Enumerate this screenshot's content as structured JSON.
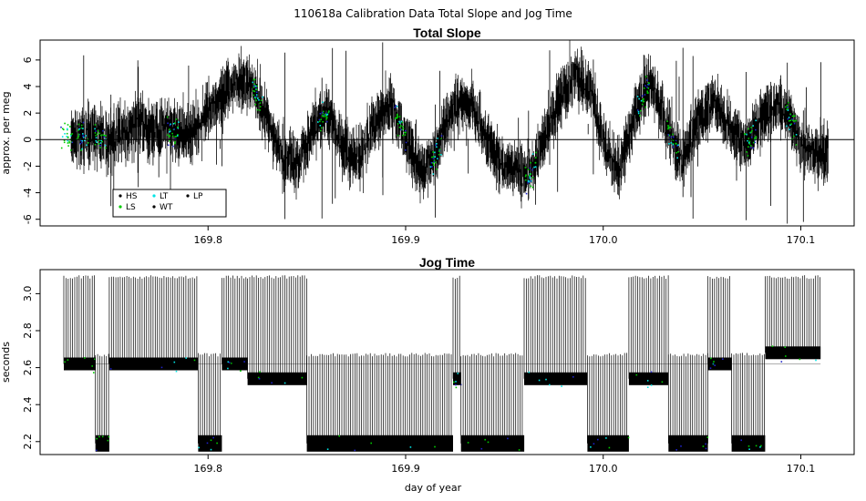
{
  "figure": {
    "title": "110618a   Calibration Data Total Slope and Jog Time",
    "xlabel": "day of year"
  },
  "colors": {
    "HS": "#000000",
    "LS": "#00cc00",
    "LT": "#00e5e5",
    "WT": "#000000",
    "LP": "#000000",
    "blue": "#1e22c8",
    "line": "#000000"
  },
  "legend": {
    "entries": [
      {
        "label": "HS",
        "color": "#000000"
      },
      {
        "label": "LT",
        "color": "#00e5e5"
      },
      {
        "label": "LP",
        "color": "#000000"
      },
      {
        "label": "LS",
        "color": "#00cc00"
      },
      {
        "label": "WT",
        "color": "#000000"
      }
    ],
    "placement": "bottom-left"
  },
  "chart_data": [
    {
      "type": "line",
      "title": "Total Slope",
      "xlabel": "",
      "ylabel": "approx. per meg",
      "xlim": [
        169.715,
        170.127
      ],
      "ylim": [
        -6.5,
        7.5
      ],
      "xticks": [
        169.8,
        169.9,
        170.0,
        170.1
      ],
      "xtick_labels": [
        "169.8",
        "169.9",
        "170.0",
        "170.1"
      ],
      "yticks": [
        -6,
        -4,
        -2,
        0,
        2,
        4,
        6
      ],
      "ytick_labels": [
        "-6",
        "-4",
        "-2",
        "0",
        "2",
        "4",
        "6"
      ],
      "hline": 0,
      "grid": false,
      "series": [
        {
          "name": "",
          "x": [
            169.727,
            169.735,
            169.742,
            169.75,
            169.758,
            169.766,
            169.774,
            169.782,
            169.79,
            169.8,
            169.808,
            169.815,
            169.822,
            169.83,
            169.838,
            169.846,
            169.854,
            169.86,
            169.868,
            169.876,
            169.884,
            169.892,
            169.9,
            169.908,
            169.916,
            169.924,
            169.932,
            169.94,
            169.948,
            169.956,
            169.962,
            169.97,
            169.978,
            169.986,
            169.994,
            170.0,
            170.008,
            170.016,
            170.024,
            170.032,
            170.04,
            170.048,
            170.056,
            170.064,
            170.072,
            170.08,
            170.088,
            170.094,
            170.1,
            170.107
          ],
          "y": [
            0.3,
            0.2,
            0.5,
            0.0,
            0.5,
            1.2,
            0.6,
            0.8,
            0.3,
            2.0,
            3.5,
            4.5,
            4.2,
            1.5,
            -1.5,
            -1.8,
            1.2,
            2.0,
            -0.5,
            -1.5,
            1.0,
            2.8,
            0.0,
            -2.5,
            -1.0,
            2.5,
            3.0,
            0.5,
            -2.0,
            -2.0,
            -3.0,
            0.0,
            3.0,
            5.0,
            3.5,
            0.0,
            -2.5,
            2.0,
            4.5,
            1.0,
            -1.5,
            1.5,
            2.8,
            0.8,
            -0.5,
            1.5,
            2.5,
            2.0,
            -0.5,
            -1.0
          ]
        }
      ]
    },
    {
      "type": "line",
      "title": "Jog Time",
      "xlabel": "day of year",
      "ylabel": "seconds",
      "xlim": [
        169.715,
        170.127
      ],
      "ylim": [
        2.13,
        3.13
      ],
      "xticks": [
        169.8,
        169.9,
        170.0,
        170.1
      ],
      "xtick_labels": [
        "169.8",
        "169.9",
        "170.0",
        "170.1"
      ],
      "yticks": [
        2.2,
        2.4,
        2.6,
        2.8,
        3.0
      ],
      "ytick_labels": [
        "2.2",
        "2.4",
        "2.6",
        "2.8",
        "3.0"
      ],
      "grid": false,
      "series": [
        {
          "name": "",
          "segments": [
            {
              "x_start": 169.727,
              "x_end": 169.743,
              "level": 2.62
            },
            {
              "x_start": 169.743,
              "x_end": 169.75,
              "level": 2.19
            },
            {
              "x_start": 169.75,
              "x_end": 169.795,
              "level": 2.62
            },
            {
              "x_start": 169.795,
              "x_end": 169.807,
              "level": 2.19
            },
            {
              "x_start": 169.807,
              "x_end": 169.82,
              "level": 2.62
            },
            {
              "x_start": 169.82,
              "x_end": 169.85,
              "level": 2.54
            },
            {
              "x_start": 169.85,
              "x_end": 169.924,
              "level": 2.19
            },
            {
              "x_start": 169.924,
              "x_end": 169.928,
              "level": 2.54
            },
            {
              "x_start": 169.928,
              "x_end": 169.96,
              "level": 2.19
            },
            {
              "x_start": 169.96,
              "x_end": 169.992,
              "level": 2.54
            },
            {
              "x_start": 169.992,
              "x_end": 170.013,
              "level": 2.19
            },
            {
              "x_start": 170.013,
              "x_end": 170.033,
              "level": 2.54
            },
            {
              "x_start": 170.033,
              "x_end": 170.053,
              "level": 2.19
            },
            {
              "x_start": 170.053,
              "x_end": 170.065,
              "level": 2.62
            },
            {
              "x_start": 170.065,
              "x_end": 170.082,
              "level": 2.19
            },
            {
              "x_start": 170.082,
              "x_end": 170.11,
              "level": 2.68
            }
          ],
          "spike_max": 3.1
        }
      ]
    }
  ]
}
